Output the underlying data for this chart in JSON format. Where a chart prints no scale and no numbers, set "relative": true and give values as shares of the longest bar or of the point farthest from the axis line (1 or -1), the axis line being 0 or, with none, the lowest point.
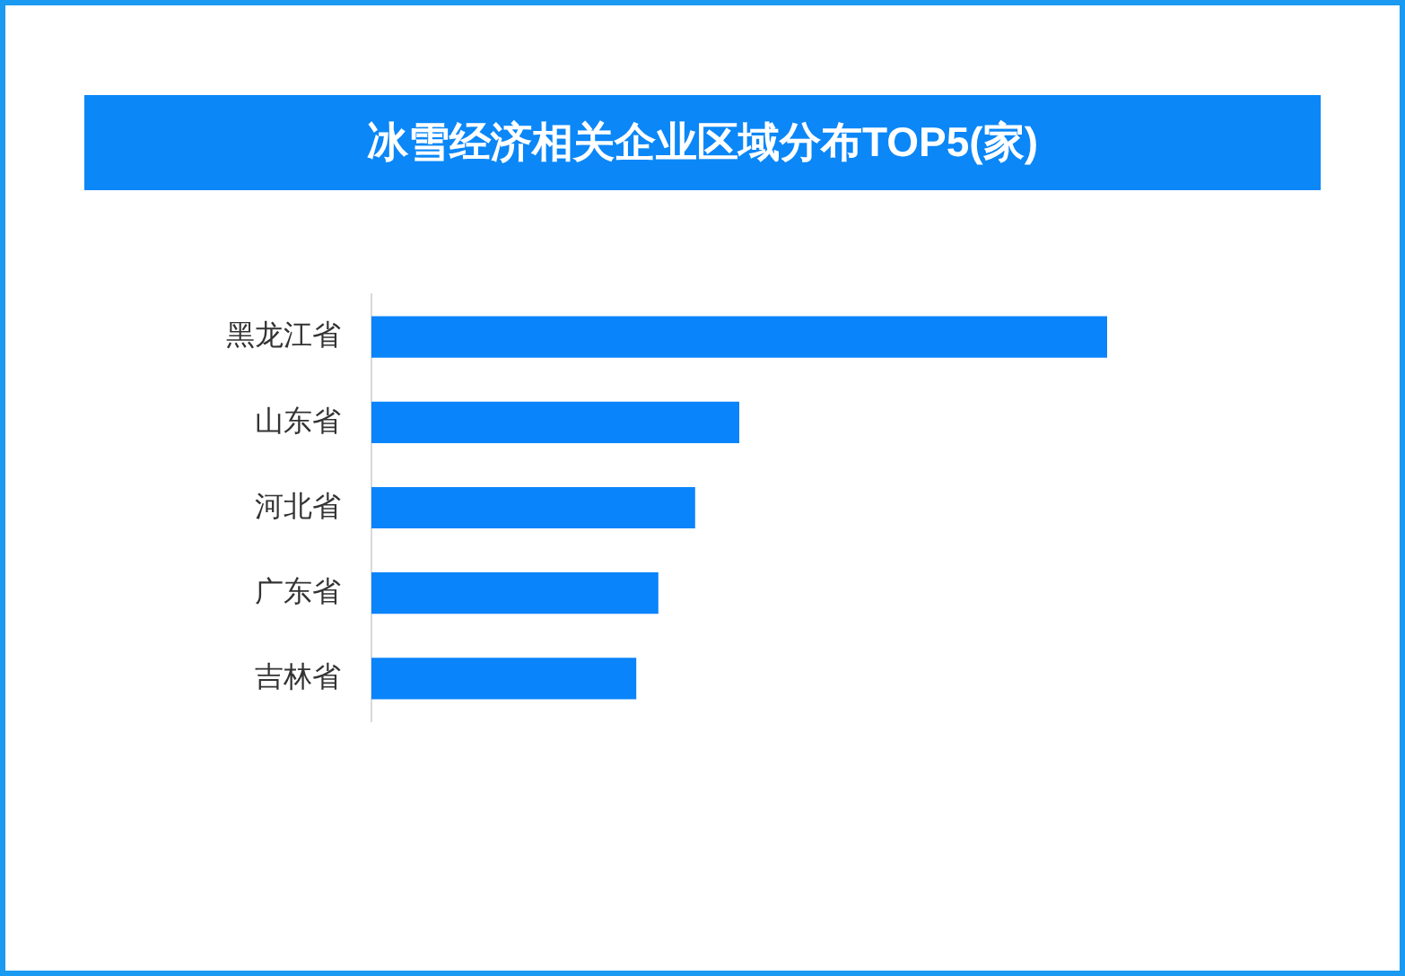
{
  "chart_data": {
    "type": "bar",
    "orientation": "horizontal",
    "title": "冰雪经济相关企业区域分布TOP5(家)",
    "categories": [
      "黑龙江省",
      "山东省",
      "河北省",
      "广东省",
      "吉林省"
    ],
    "values": [
      1,
      0.5,
      0.44,
      0.39,
      0.36
    ],
    "color": "#0a84fb",
    "relative": true
  }
}
